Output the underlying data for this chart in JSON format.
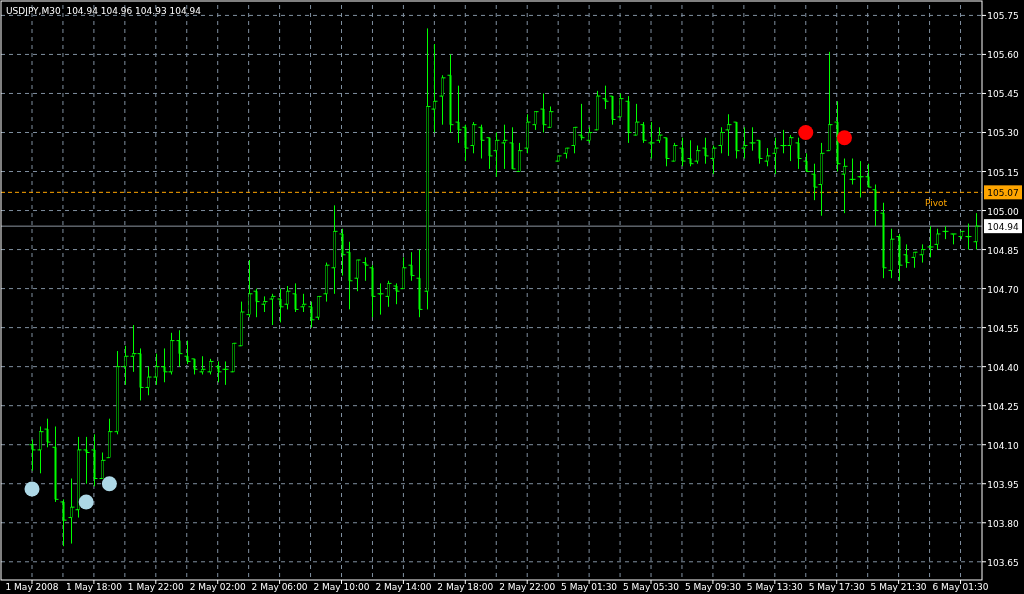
{
  "chart_data": {
    "type": "candlestick",
    "title": "USDJPY,M30  104.94 104.96 104.93 104.94",
    "categories": [
      "1 May 2008",
      null,
      null,
      null,
      null,
      null,
      null,
      null,
      "1 May 18:00",
      null,
      null,
      null,
      null,
      null,
      null,
      null,
      "1 May 22:00",
      null,
      null,
      null,
      null,
      null,
      null,
      null,
      "2 May 02:00",
      null,
      null,
      null,
      null,
      null,
      null,
      null,
      "2 May 06:00",
      null,
      null,
      null,
      null,
      null,
      null,
      null,
      "2 May 10:00",
      null,
      null,
      null,
      null,
      null,
      null,
      null,
      "2 May 14:00",
      null,
      null,
      null,
      null,
      null,
      null,
      null,
      "2 May 18:00",
      null,
      null,
      null,
      null,
      null,
      null,
      null,
      "2 May 22:00",
      null,
      null,
      null,
      null,
      null,
      null,
      null,
      "5 May 01:30",
      null,
      null,
      null,
      null,
      null,
      null,
      null,
      "5 May 05:30",
      null,
      null,
      null,
      null,
      null,
      null,
      null,
      "5 May 09:30",
      null,
      null,
      null,
      null,
      null,
      null,
      null,
      "5 May 13:30",
      null,
      null,
      null,
      null,
      null,
      null,
      null,
      "5 May 17:30",
      null,
      null,
      null,
      null,
      null,
      null,
      null,
      "5 May 21:30",
      null,
      null,
      null,
      null,
      null,
      null,
      null,
      "6 May 01:30",
      null,
      null
    ],
    "series": [
      {
        "type": "candlestick",
        "color": "#00ff00",
        "ohlc": [
          [
            104.1,
            104.12,
            104.0,
            104.08
          ],
          [
            104.08,
            104.17,
            103.99,
            104.15
          ],
          [
            104.16,
            104.2,
            104.09,
            104.11
          ],
          [
            104.09,
            104.17,
            103.88,
            103.89
          ],
          [
            103.88,
            103.89,
            103.71,
            103.81
          ],
          [
            103.82,
            103.97,
            103.72,
            103.86
          ],
          [
            103.85,
            104.13,
            103.82,
            104.08
          ],
          [
            104.08,
            104.13,
            103.95,
            104.07
          ],
          [
            104.08,
            104.14,
            103.94,
            103.97
          ],
          [
            103.97,
            104.07,
            103.97,
            104.04
          ],
          [
            104.05,
            104.2,
            104.05,
            104.15
          ],
          [
            104.15,
            104.46,
            104.14,
            104.4
          ],
          [
            104.4,
            104.48,
            104.33,
            104.44
          ],
          [
            104.44,
            104.56,
            104.38,
            104.45
          ],
          [
            104.45,
            104.47,
            104.27,
            104.32
          ],
          [
            104.32,
            104.4,
            104.29,
            104.36
          ],
          [
            104.36,
            104.45,
            104.33,
            104.4
          ],
          [
            104.4,
            104.47,
            104.34,
            104.38
          ],
          [
            104.38,
            104.53,
            104.37,
            104.5
          ],
          [
            104.5,
            104.54,
            104.4,
            104.45
          ],
          [
            104.44,
            104.5,
            104.41,
            104.42
          ],
          [
            104.43,
            104.43,
            104.37,
            104.39
          ],
          [
            104.38,
            104.44,
            104.37,
            104.39
          ],
          [
            104.38,
            104.43,
            104.37,
            104.42
          ],
          [
            104.4,
            104.42,
            104.34,
            104.38
          ],
          [
            104.39,
            104.42,
            104.33,
            104.39
          ],
          [
            104.38,
            104.49,
            104.38,
            104.49
          ],
          [
            104.48,
            104.65,
            104.48,
            104.61
          ],
          [
            104.6,
            104.81,
            104.59,
            104.68
          ],
          [
            104.69,
            104.7,
            104.59,
            104.65
          ],
          [
            104.64,
            104.67,
            104.61,
            104.65
          ],
          [
            104.66,
            104.68,
            104.56,
            104.67
          ],
          [
            104.66,
            104.7,
            104.57,
            104.63
          ],
          [
            104.64,
            104.71,
            104.62,
            104.69
          ],
          [
            104.68,
            104.72,
            104.61,
            104.62
          ],
          [
            104.63,
            104.68,
            104.61,
            104.64
          ],
          [
            104.63,
            104.65,
            104.55,
            104.58
          ],
          [
            104.59,
            104.67,
            104.58,
            104.67
          ],
          [
            104.68,
            104.8,
            104.65,
            104.79
          ],
          [
            104.78,
            105.02,
            104.68,
            104.92
          ],
          [
            104.91,
            104.93,
            104.75,
            104.83
          ],
          [
            104.84,
            104.88,
            104.62,
            104.73
          ],
          [
            104.74,
            104.81,
            104.69,
            104.81
          ],
          [
            104.8,
            104.82,
            104.73,
            104.79
          ],
          [
            104.78,
            104.79,
            104.59,
            104.67
          ],
          [
            104.68,
            104.72,
            104.6,
            104.68
          ],
          [
            104.67,
            104.73,
            104.63,
            104.72
          ],
          [
            104.71,
            104.72,
            104.64,
            104.69
          ],
          [
            104.7,
            104.82,
            104.7,
            104.78
          ],
          [
            104.79,
            104.84,
            104.73,
            104.75
          ],
          [
            104.74,
            104.85,
            104.59,
            104.62
          ],
          [
            104.69,
            105.7,
            104.62,
            105.4
          ],
          [
            105.39,
            105.64,
            105.3,
            105.42
          ],
          [
            105.44,
            105.52,
            105.33,
            105.51
          ],
          [
            105.52,
            105.6,
            105.3,
            105.33
          ],
          [
            105.34,
            105.48,
            105.26,
            105.31
          ],
          [
            105.32,
            105.33,
            105.19,
            105.24
          ],
          [
            105.25,
            105.34,
            105.22,
            105.33
          ],
          [
            105.32,
            105.33,
            105.2,
            105.27
          ],
          [
            105.28,
            105.28,
            105.16,
            105.21
          ],
          [
            105.23,
            105.3,
            105.13,
            105.27
          ],
          [
            105.26,
            105.33,
            105.16,
            105.27
          ],
          [
            105.26,
            105.32,
            105.16,
            105.16
          ],
          [
            105.15,
            105.26,
            105.15,
            105.23
          ],
          [
            105.24,
            105.37,
            105.22,
            105.34
          ],
          [
            105.33,
            105.38,
            105.31,
            105.38
          ],
          [
            105.39,
            105.45,
            105.3,
            105.33
          ],
          [
            105.32,
            105.4,
            105.32,
            105.38
          ],
          [
            105.19,
            105.21,
            105.19,
            105.21
          ],
          [
            105.22,
            105.24,
            105.2,
            105.24
          ],
          [
            105.25,
            105.32,
            105.22,
            105.32
          ],
          [
            105.29,
            105.41,
            105.27,
            105.28
          ],
          [
            105.27,
            105.32,
            105.26,
            105.3
          ],
          [
            105.31,
            105.46,
            105.31,
            105.44
          ],
          [
            105.43,
            105.48,
            105.39,
            105.42
          ],
          [
            105.44,
            105.44,
            105.33,
            105.35
          ],
          [
            105.36,
            105.45,
            105.36,
            105.43
          ],
          [
            105.42,
            105.44,
            105.26,
            105.3
          ],
          [
            105.29,
            105.41,
            105.29,
            105.34
          ],
          [
            105.33,
            105.34,
            105.26,
            105.27
          ],
          [
            105.26,
            105.34,
            105.2,
            105.26
          ],
          [
            105.27,
            105.32,
            105.26,
            105.29
          ],
          [
            105.28,
            105.28,
            105.17,
            105.2
          ],
          [
            105.19,
            105.26,
            105.19,
            105.25
          ],
          [
            105.24,
            105.28,
            105.17,
            105.19
          ],
          [
            105.2,
            105.27,
            105.17,
            105.18
          ],
          [
            105.19,
            105.25,
            105.18,
            105.23
          ],
          [
            105.24,
            105.28,
            105.18,
            105.21
          ],
          [
            105.2,
            105.25,
            105.14,
            105.24
          ],
          [
            105.25,
            105.32,
            105.22,
            105.3
          ],
          [
            105.31,
            105.37,
            105.21,
            105.33
          ],
          [
            105.34,
            105.34,
            105.2,
            105.23
          ],
          [
            105.24,
            105.32,
            105.2,
            105.25
          ],
          [
            105.26,
            105.32,
            105.23,
            105.26
          ],
          [
            105.27,
            105.27,
            105.18,
            105.2
          ],
          [
            105.19,
            105.24,
            105.17,
            105.21
          ],
          [
            105.22,
            105.28,
            105.14,
            105.24
          ],
          [
            105.25,
            105.31,
            105.22,
            105.25
          ],
          [
            105.25,
            105.29,
            105.19,
            105.28
          ],
          [
            105.26,
            105.28,
            105.16,
            105.2
          ],
          [
            105.19,
            105.22,
            105.15,
            105.15
          ],
          [
            105.14,
            105.18,
            105.04,
            105.09
          ],
          [
            105.1,
            105.26,
            104.98,
            105.22
          ],
          [
            105.23,
            105.61,
            105.23,
            105.33
          ],
          [
            105.34,
            105.42,
            105.15,
            105.18
          ],
          [
            105.14,
            105.2,
            104.99,
            105.17
          ],
          [
            105.12,
            105.2,
            105.1,
            105.12
          ],
          [
            105.13,
            105.19,
            105.05,
            105.13
          ],
          [
            105.13,
            105.18,
            105.09,
            105.09
          ],
          [
            105.08,
            105.1,
            104.94,
            105.0
          ],
          [
            104.99,
            105.03,
            104.74,
            104.78
          ],
          [
            104.77,
            104.93,
            104.74,
            104.89
          ],
          [
            104.9,
            104.91,
            104.73,
            104.79
          ],
          [
            104.83,
            104.87,
            104.78,
            104.8
          ],
          [
            104.82,
            104.84,
            104.78,
            104.84
          ],
          [
            104.83,
            104.87,
            104.8,
            104.85
          ],
          [
            104.86,
            104.94,
            104.82,
            104.86
          ],
          [
            104.87,
            104.93,
            104.85,
            104.91
          ],
          [
            104.92,
            104.94,
            104.89,
            104.92
          ],
          [
            104.91,
            104.91,
            104.87,
            104.91
          ],
          [
            104.9,
            104.92,
            104.89,
            104.92
          ],
          [
            104.9,
            104.95,
            104.85,
            104.9
          ],
          [
            104.88,
            104.99,
            104.85,
            104.94
          ]
        ]
      },
      {
        "type": "scatter",
        "color": "#add8e6",
        "values": [
          103.93,
          null,
          null,
          null,
          null,
          null,
          null,
          103.88,
          null,
          null,
          103.95,
          null,
          null,
          null,
          null,
          null,
          null,
          null,
          null,
          null,
          null,
          null,
          null,
          null,
          null,
          null,
          null,
          null,
          null,
          null,
          null,
          null,
          null,
          null,
          null,
          null,
          null,
          null,
          null,
          null,
          null,
          null,
          null,
          null,
          null,
          null,
          null,
          null,
          null,
          null,
          null,
          null,
          null,
          null,
          null,
          null,
          null,
          null,
          null,
          null,
          null,
          null,
          null,
          null,
          null,
          null,
          null,
          null,
          null,
          null,
          null,
          null,
          null,
          null,
          null,
          null,
          null,
          null,
          null,
          null,
          null,
          null,
          null,
          null,
          null,
          null,
          null,
          null,
          null,
          null,
          null,
          null,
          null,
          null,
          null,
          null,
          null,
          null,
          null,
          null,
          null,
          null,
          null,
          null,
          null,
          null,
          null,
          null,
          null,
          null,
          null,
          null,
          null,
          null,
          null,
          null,
          null,
          null,
          null,
          null,
          null,
          null,
          null
        ]
      },
      {
        "type": "scatter",
        "color": "#ff0000",
        "values": [
          null,
          null,
          null,
          null,
          null,
          null,
          null,
          null,
          null,
          null,
          null,
          null,
          null,
          null,
          null,
          null,
          null,
          null,
          null,
          null,
          null,
          null,
          null,
          null,
          null,
          null,
          null,
          null,
          null,
          null,
          null,
          null,
          null,
          null,
          null,
          null,
          null,
          null,
          null,
          null,
          null,
          null,
          null,
          null,
          null,
          null,
          null,
          null,
          null,
          null,
          null,
          null,
          null,
          null,
          null,
          null,
          null,
          null,
          null,
          null,
          null,
          null,
          null,
          null,
          null,
          null,
          null,
          null,
          null,
          null,
          null,
          null,
          null,
          null,
          null,
          null,
          null,
          null,
          null,
          null,
          null,
          null,
          null,
          null,
          null,
          null,
          null,
          null,
          null,
          null,
          null,
          null,
          null,
          null,
          null,
          null,
          null,
          null,
          null,
          null,
          105.3,
          null,
          null,
          null,
          null,
          105.28,
          null,
          null,
          null,
          null,
          null,
          null,
          null,
          null,
          null,
          null,
          null,
          null,
          null,
          null,
          null,
          null,
          null
        ]
      }
    ],
    "marker": "circle",
    "ylim": [
      103.58,
      105.79
    ],
    "yticks": [
      {
        "value": 103.65,
        "label": "103.65"
      },
      {
        "value": 103.8,
        "label": "103.80"
      },
      {
        "value": 103.95,
        "label": "103.95"
      },
      {
        "value": 104.1,
        "label": "104.10"
      },
      {
        "value": 104.25,
        "label": "104.25"
      },
      {
        "value": 104.4,
        "label": "104.40"
      },
      {
        "value": 104.55,
        "label": "104.55"
      },
      {
        "value": 104.7,
        "label": "104.70"
      },
      {
        "value": 104.85,
        "label": "104.85"
      },
      {
        "value": 105,
        "label": "105.00"
      },
      {
        "value": 105.15,
        "label": "105.15"
      },
      {
        "value": 105.3,
        "label": "105.30"
      },
      {
        "value": 105.45,
        "label": "105.45"
      },
      {
        "value": 105.6,
        "label": "105.60"
      },
      {
        "value": 105.75,
        "label": "105.75"
      }
    ],
    "ref_lines": [
      {
        "axis": "y",
        "value": 105.07,
        "label": "Pivot",
        "color": "#ffa500",
        "line_style": "dashed"
      },
      {
        "axis": "y",
        "value": 104.94,
        "color": "#8c96a0",
        "line_style": "solid"
      }
    ],
    "annotations": [
      "105.07",
      "104.94"
    ],
    "grid": true
  }
}
